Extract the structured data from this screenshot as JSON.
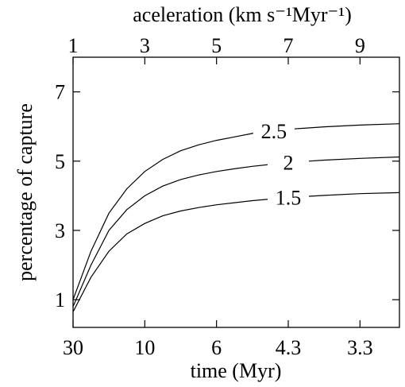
{
  "chart_data": {
    "type": "line",
    "title": "",
    "xlabel": "time (Myr)",
    "ylabel": "percentage of capture",
    "top_xlabel": "aceleration (km s⁻¹Myr⁻¹)",
    "xlim": [
      1,
      10.1
    ],
    "ylim": [
      0.2,
      8
    ],
    "x_ticks": [
      1,
      3,
      5,
      7,
      9
    ],
    "x_tick_labels": [
      "30",
      "10",
      "6",
      "4.3",
      "3.3"
    ],
    "top_tick_labels": [
      "1",
      "3",
      "5",
      "7",
      "9"
    ],
    "y_ticks": [
      1,
      3,
      5,
      7
    ],
    "y_tick_labels": [
      "1",
      "3",
      "5",
      "7"
    ],
    "grid": false,
    "series": [
      {
        "name": "2.5",
        "label_x": 6.6,
        "x": [
          1,
          1.5,
          2,
          2.5,
          3,
          3.5,
          4,
          4.5,
          5,
          5.5,
          6,
          7,
          8,
          9,
          10.1
        ],
        "y": [
          1.0,
          2.4,
          3.5,
          4.2,
          4.7,
          5.05,
          5.3,
          5.47,
          5.6,
          5.7,
          5.8,
          5.92,
          5.99,
          6.04,
          6.08
        ]
      },
      {
        "name": "2",
        "label_x": 7.0,
        "x": [
          1,
          1.5,
          2,
          2.5,
          3,
          3.5,
          4,
          4.5,
          5,
          5.5,
          6,
          7,
          8,
          9,
          10.1
        ],
        "y": [
          0.8,
          2.0,
          3.0,
          3.6,
          4.0,
          4.28,
          4.47,
          4.6,
          4.7,
          4.78,
          4.85,
          4.96,
          5.03,
          5.08,
          5.12
        ]
      },
      {
        "name": "1.5",
        "label_x": 7.0,
        "x": [
          1,
          1.5,
          2,
          2.5,
          3,
          3.5,
          4,
          4.5,
          5,
          5.5,
          6,
          7,
          8,
          9,
          10.1
        ],
        "y": [
          0.65,
          1.65,
          2.4,
          2.9,
          3.2,
          3.42,
          3.56,
          3.66,
          3.74,
          3.8,
          3.86,
          3.95,
          4.01,
          4.06,
          4.09
        ]
      }
    ]
  }
}
